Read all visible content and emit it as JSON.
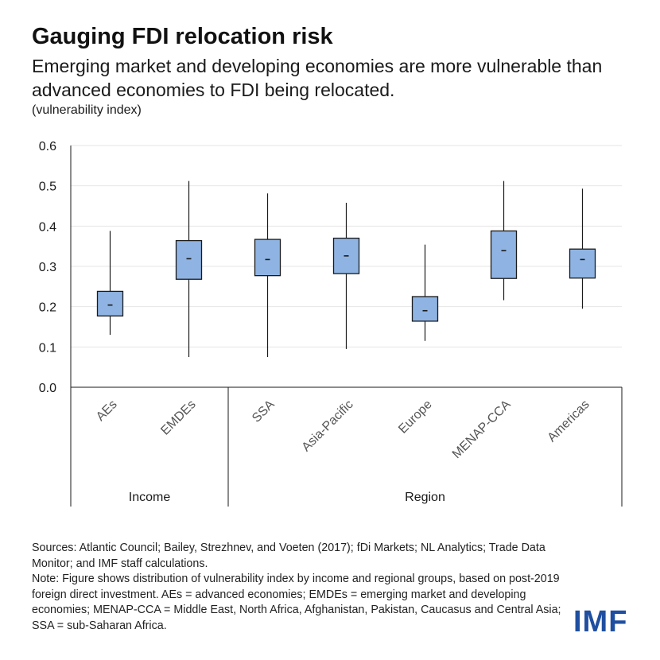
{
  "title": "Gauging FDI relocation risk",
  "subtitle": "Emerging market and developing economies are more vulnerable than advanced economies to FDI being relocated.",
  "unit_label": "(vulnerability index)",
  "colors": {
    "box_fill": "#8fb4e3",
    "box_stroke": "#1a1a1a",
    "grid": "#e6e6e6",
    "logo": "#1f4fa0"
  },
  "chart_data": {
    "type": "boxplot",
    "ylim": [
      0,
      0.6
    ],
    "yticks": [
      "0.0",
      "0.1",
      "0.2",
      "0.3",
      "0.4",
      "0.5",
      "0.6"
    ],
    "grid": true,
    "groups": [
      {
        "label": "Income",
        "categories": [
          "AEs",
          "EMDEs"
        ]
      },
      {
        "label": "Region",
        "categories": [
          "SSA",
          "Asia-Pacific",
          "Europe",
          "MENAP-CCA",
          "Americas"
        ]
      }
    ],
    "boxes": [
      {
        "category": "AEs",
        "min": 0.13,
        "q1": 0.177,
        "median": 0.204,
        "q3": 0.238,
        "max": 0.388
      },
      {
        "category": "EMDEs",
        "min": 0.075,
        "q1": 0.268,
        "median": 0.319,
        "q3": 0.364,
        "max": 0.512
      },
      {
        "category": "SSA",
        "min": 0.075,
        "q1": 0.277,
        "median": 0.317,
        "q3": 0.367,
        "max": 0.481
      },
      {
        "category": "Asia-Pacific",
        "min": 0.095,
        "q1": 0.282,
        "median": 0.326,
        "q3": 0.37,
        "max": 0.458
      },
      {
        "category": "Europe",
        "min": 0.115,
        "q1": 0.164,
        "median": 0.19,
        "q3": 0.225,
        "max": 0.354
      },
      {
        "category": "MENAP-CCA",
        "min": 0.216,
        "q1": 0.27,
        "median": 0.339,
        "q3": 0.388,
        "max": 0.512
      },
      {
        "category": "Americas",
        "min": 0.195,
        "q1": 0.271,
        "median": 0.317,
        "q3": 0.343,
        "max": 0.493
      }
    ]
  },
  "notes": {
    "sources": "Sources: Atlantic Council; Bailey, Strezhnev, and Voeten (2017); fDi Markets; NL Analytics; Trade Data Monitor; and IMF staff calculations.",
    "note": "Note: Figure shows distribution of vulnerability index by income and regional groups, based on post-2019 foreign direct investment. AEs = advanced economies; EMDEs = emerging market and developing economies; MENAP-CCA = Middle East, North Africa, Afghanistan, Pakistan, Caucasus and Central Asia; SSA = sub-Saharan Africa."
  },
  "logo_text": "IMF"
}
